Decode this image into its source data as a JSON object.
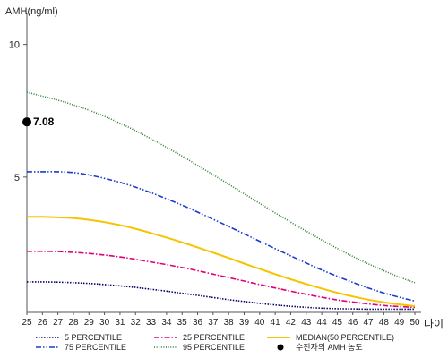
{
  "chart_data": {
    "type": "line",
    "ylabel": "AMH(ng/ml)",
    "xlabel": "나이",
    "x": [
      25,
      26,
      27,
      28,
      29,
      30,
      31,
      32,
      33,
      34,
      35,
      36,
      37,
      38,
      39,
      40,
      41,
      42,
      43,
      44,
      45,
      46,
      47,
      48,
      49,
      50
    ],
    "ylim": [
      -0.1,
      11.0
    ],
    "y_ticks": [
      5,
      10
    ],
    "grid": false,
    "legend_position": "bottom",
    "series": [
      {
        "name": "5 PERCENTILE",
        "color": "#000066",
        "dash": "dotted",
        "values": [
          1.05,
          1.05,
          1.04,
          1.02,
          0.99,
          0.95,
          0.9,
          0.84,
          0.77,
          0.7,
          0.62,
          0.54,
          0.46,
          0.38,
          0.31,
          0.24,
          0.18,
          0.13,
          0.09,
          0.06,
          0.04,
          0.03,
          0.02,
          0.02,
          0.02,
          0.02
        ]
      },
      {
        "name": "25 PERCENTILE",
        "color": "#e0007a",
        "dash": "dashdot",
        "values": [
          2.2,
          2.2,
          2.19,
          2.16,
          2.12,
          2.06,
          1.99,
          1.9,
          1.8,
          1.7,
          1.59,
          1.47,
          1.34,
          1.21,
          1.08,
          0.95,
          0.82,
          0.7,
          0.58,
          0.47,
          0.37,
          0.29,
          0.22,
          0.16,
          0.12,
          0.09
        ]
      },
      {
        "name": "MEDIAN(50 PERCENTILE)",
        "color": "#f5c400",
        "dash": "solid",
        "values": [
          3.5,
          3.5,
          3.48,
          3.45,
          3.39,
          3.3,
          3.19,
          3.05,
          2.89,
          2.72,
          2.54,
          2.35,
          2.15,
          1.95,
          1.74,
          1.54,
          1.34,
          1.15,
          0.97,
          0.8,
          0.64,
          0.5,
          0.38,
          0.28,
          0.2,
          0.14
        ]
      },
      {
        "name": "75 PERCENTILE",
        "color": "#1a3cc8",
        "dash": "dashdotdot",
        "values": [
          5.2,
          5.2,
          5.2,
          5.17,
          5.08,
          4.95,
          4.8,
          4.62,
          4.41,
          4.18,
          3.94,
          3.68,
          3.41,
          3.14,
          2.86,
          2.58,
          2.3,
          2.03,
          1.76,
          1.5,
          1.26,
          1.03,
          0.82,
          0.63,
          0.47,
          0.33
        ]
      },
      {
        "name": "95 PERCENTILE",
        "color": "#2e7d32",
        "dash": "densedot",
        "values": [
          8.2,
          8.05,
          7.9,
          7.72,
          7.52,
          7.29,
          7.03,
          6.75,
          6.44,
          6.12,
          5.79,
          5.44,
          5.09,
          4.73,
          4.37,
          4.01,
          3.65,
          3.3,
          2.96,
          2.63,
          2.31,
          2.01,
          1.73,
          1.47,
          1.23,
          1.02
        ]
      }
    ],
    "patient_point": {
      "legend_label": "수진자의 AMH 농도",
      "x": 25,
      "y": 7.08,
      "label": "7.08",
      "color": "#000000"
    }
  }
}
